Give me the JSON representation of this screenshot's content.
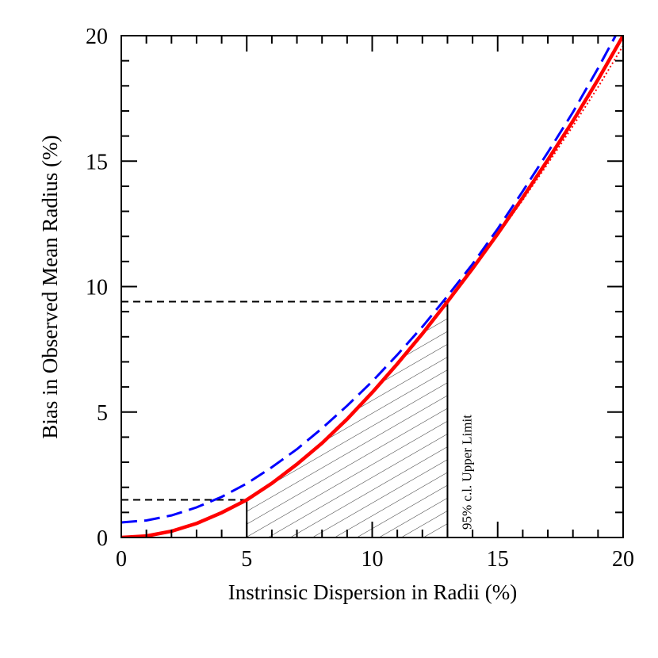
{
  "chart_data": {
    "type": "line",
    "xlabel": "Instrinsic Dispersion in Radii (%)",
    "ylabel": "Bias in Observed Mean Radius (%)",
    "xlim": [
      0,
      20
    ],
    "ylim": [
      0,
      20
    ],
    "xticks": [
      0,
      5,
      10,
      15,
      20
    ],
    "yticks": [
      0,
      5,
      10,
      15,
      20
    ],
    "xminorticks": [
      1,
      2,
      3,
      4,
      6,
      7,
      8,
      9,
      11,
      12,
      13,
      14,
      16,
      17,
      18,
      19
    ],
    "yminorticks": [
      1,
      2,
      3,
      4,
      6,
      7,
      8,
      9,
      11,
      12,
      13,
      14,
      16,
      17,
      18,
      19
    ],
    "series": [
      {
        "style": "solid",
        "color": "#ff0000",
        "x": [
          0,
          1,
          2,
          3,
          4,
          5,
          6,
          7,
          8,
          9,
          10,
          11,
          12,
          13,
          14,
          15,
          16,
          17,
          18,
          19,
          20
        ],
        "values": [
          0,
          0.06,
          0.25,
          0.56,
          0.99,
          1.5,
          2.16,
          2.92,
          3.76,
          4.72,
          5.78,
          6.92,
          8.12,
          9.4,
          10.72,
          12.1,
          13.55,
          15.05,
          16.6,
          18.25,
          20
        ]
      },
      {
        "style": "dotted",
        "color": "#ff0000",
        "x": [
          13,
          14,
          15,
          16,
          17,
          18,
          19,
          20
        ],
        "values": [
          9.4,
          10.7,
          12.05,
          13.45,
          14.9,
          16.4,
          17.95,
          19.6
        ]
      },
      {
        "style": "dashed",
        "color": "#0000ff",
        "x": [
          0,
          1,
          2,
          3,
          4,
          5,
          6,
          7,
          8,
          9,
          10,
          11,
          12,
          13,
          14,
          15,
          16,
          17,
          18,
          19,
          19.7
        ],
        "values": [
          0.6,
          0.68,
          0.88,
          1.2,
          1.62,
          2.15,
          2.8,
          3.52,
          4.35,
          5.25,
          6.22,
          7.28,
          8.4,
          9.62,
          10.9,
          12.3,
          13.8,
          15.35,
          16.95,
          18.7,
          20
        ]
      }
    ],
    "markers": {
      "lower": {
        "x": 5,
        "y": 1.5
      },
      "upper": {
        "x": 13,
        "y": 9.4
      }
    },
    "annotation": "95% c.l. Upper Limit"
  }
}
